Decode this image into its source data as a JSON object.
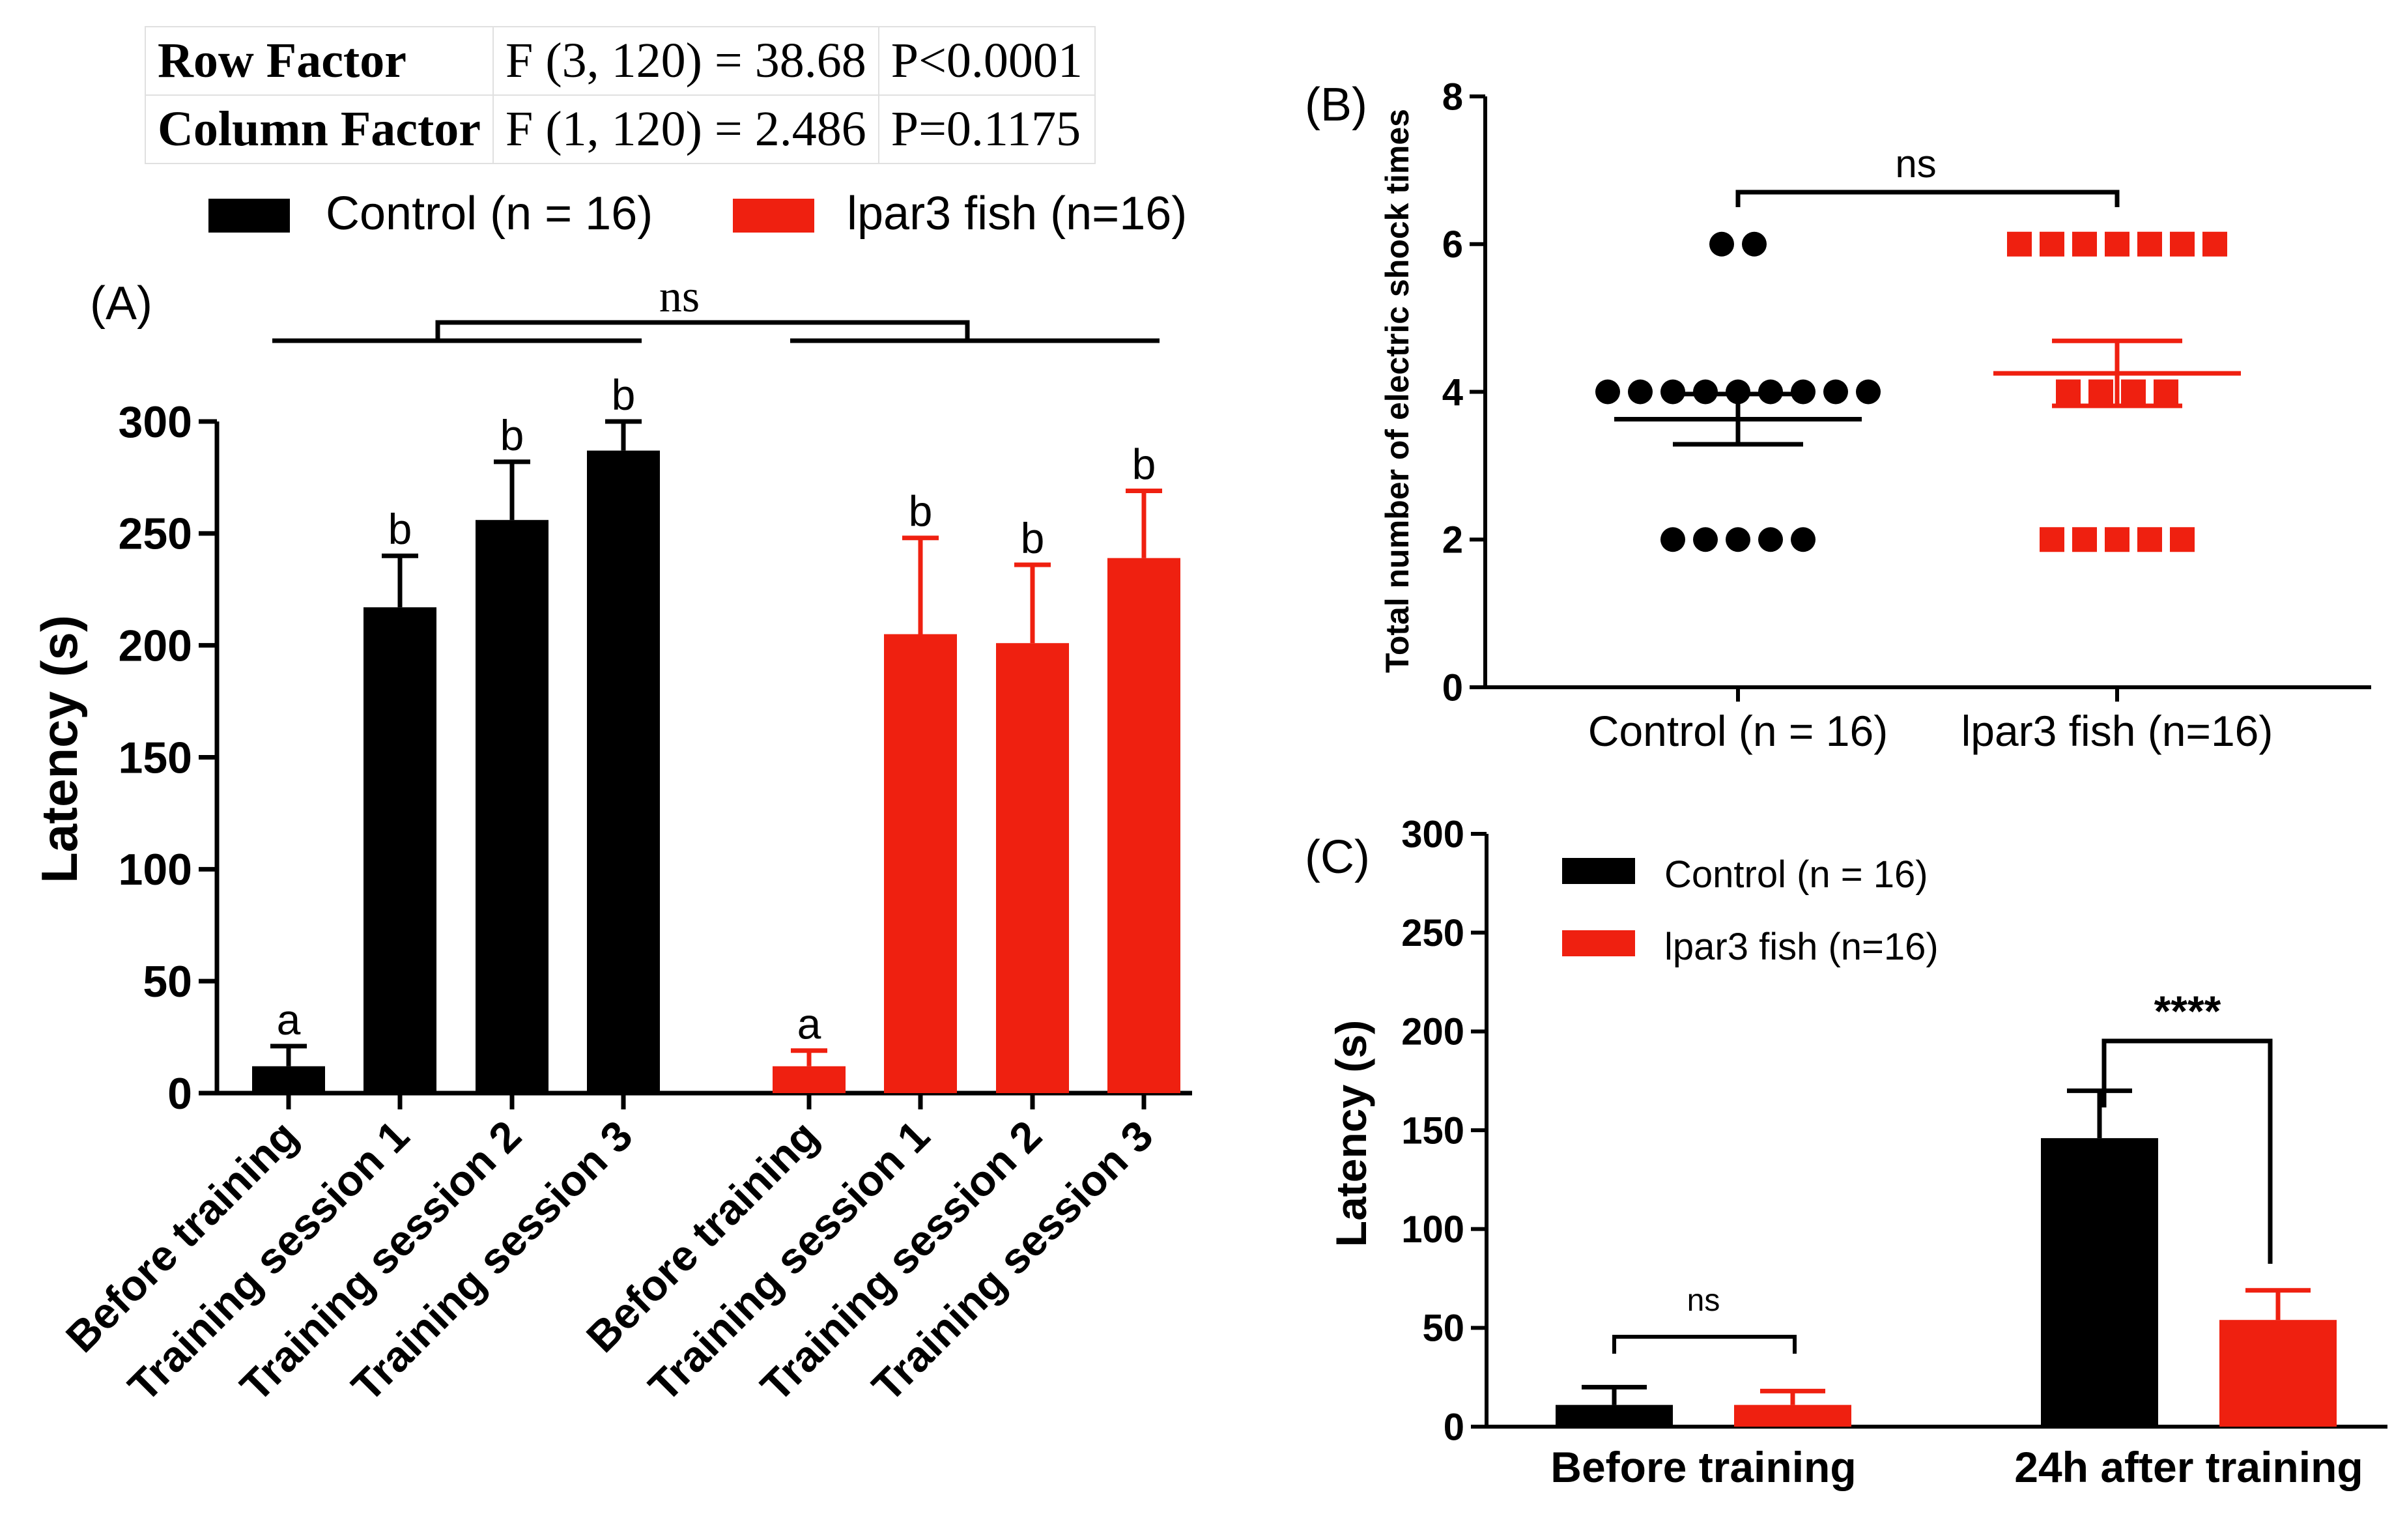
{
  "stats_table": {
    "rows": [
      {
        "label": "Row Factor",
        "f": "F (3, 120) = 38.68",
        "p": "P<0.0001"
      },
      {
        "label": "Column Factor",
        "f": "F (1, 120) = 2.486",
        "p": "P=0.1175"
      }
    ]
  },
  "legend": {
    "control": "Control (n = 16)",
    "lpar3": "lpar3 fish (n=16)"
  },
  "colors": {
    "control": "#000000",
    "lpar3": "#ef2010"
  },
  "chart_data": [
    {
      "panel": "(A)",
      "type": "bar",
      "ylabel": "Latency (s)",
      "ylim": [
        0,
        300
      ],
      "yticks": [
        "0",
        "50",
        "100",
        "150",
        "200",
        "250",
        "300"
      ],
      "categories": [
        "Before training",
        "Training session 1",
        "Training session 2",
        "Training session 3"
      ],
      "series": [
        {
          "name": "Control (n = 16)",
          "values": [
            12,
            217,
            256,
            287
          ],
          "errors": [
            9,
            23,
            26,
            13
          ],
          "letters": [
            "a",
            "b",
            "b",
            "b"
          ]
        },
        {
          "name": "lpar3 fish (n=16)",
          "values": [
            12,
            205,
            201,
            239
          ],
          "errors": [
            7,
            43,
            35,
            30
          ],
          "letters": [
            "a",
            "b",
            "b",
            "b"
          ]
        }
      ],
      "comparison": "ns"
    },
    {
      "panel": "(B)",
      "type": "scatter",
      "ylabel": "Total number of electric shock times",
      "ylim": [
        0,
        8
      ],
      "yticks": [
        "0",
        "2",
        "4",
        "6",
        "8"
      ],
      "categories": [
        "Control (n = 16)",
        "lpar3 fish (n=16)"
      ],
      "series": [
        {
          "name": "Control (n = 16)",
          "points": [
            6,
            6,
            4,
            4,
            4,
            4,
            4,
            4,
            4,
            4,
            4,
            2,
            2,
            2,
            2,
            2
          ],
          "mean": 3.63,
          "sem": 0.34
        },
        {
          "name": "lpar3 fish (n=16)",
          "points": [
            6,
            6,
            6,
            6,
            6,
            6,
            6,
            4,
            4,
            4,
            4,
            2,
            2,
            2,
            2,
            2
          ],
          "mean": 4.25,
          "sem": 0.44
        }
      ],
      "comparison": "ns"
    },
    {
      "panel": "(C)",
      "type": "bar",
      "ylabel": "Latency (s)",
      "ylim": [
        0,
        300
      ],
      "yticks": [
        "0",
        "50",
        "100",
        "150",
        "200",
        "250",
        "300"
      ],
      "categories": [
        "Before training",
        "24h after training"
      ],
      "series": [
        {
          "name": "Control (n = 16)",
          "values": [
            11,
            146
          ],
          "errors": [
            9,
            24
          ]
        },
        {
          "name": "lpar3 fish (n=16)",
          "values": [
            11,
            54
          ],
          "errors": [
            7,
            15
          ]
        }
      ],
      "comparisons": [
        "ns",
        "****"
      ]
    }
  ]
}
